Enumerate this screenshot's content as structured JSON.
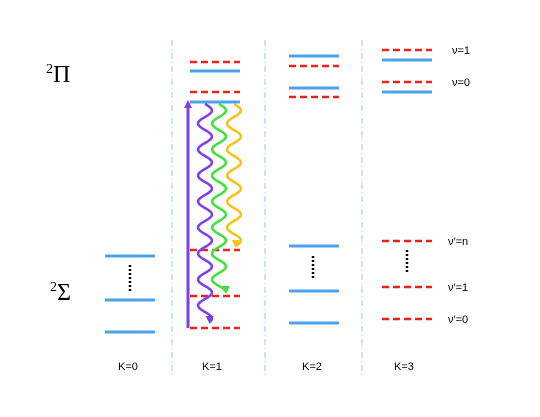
{
  "states": [
    {
      "multiplicity": "2",
      "symbol": "Π"
    },
    {
      "multiplicity": "2",
      "symbol": "Σ"
    }
  ],
  "columns": [
    "K=0",
    "K=1",
    "K=2",
    "K=3"
  ],
  "levels": [
    "ν=1",
    "ν=0",
    "ν′=n",
    "ν′=1",
    "ν′=0"
  ]
}
